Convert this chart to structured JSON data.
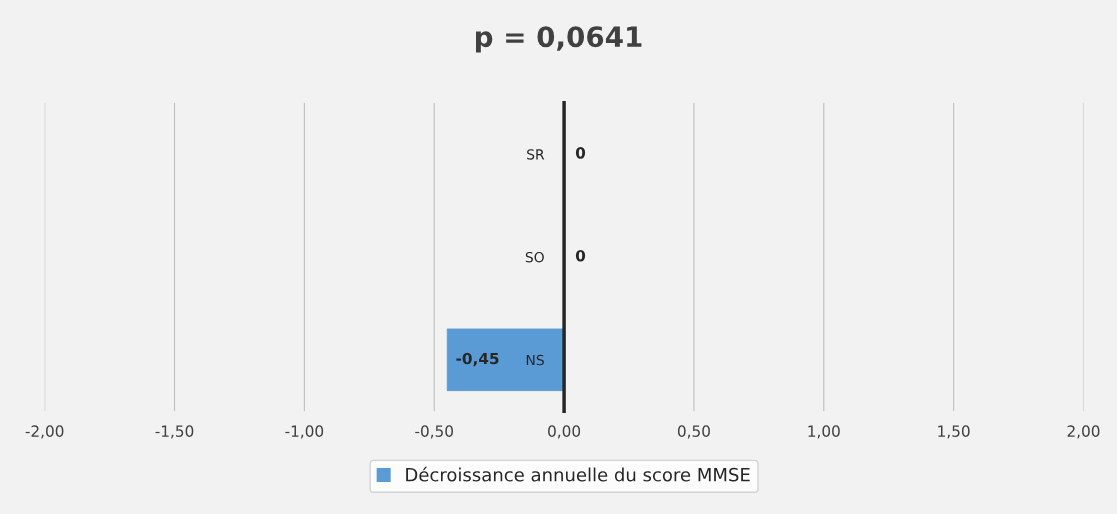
{
  "chart_data": {
    "type": "bar",
    "orientation": "horizontal",
    "title": "p = 0,0641",
    "categories": [
      "SR",
      "SO",
      "NS"
    ],
    "series": [
      {
        "name": "Décroissance annuelle du score MMSE",
        "color": "#5b9bd5",
        "values": [
          0,
          0,
          -0.45
        ],
        "value_labels": [
          "0",
          "0",
          "-0,45"
        ]
      }
    ],
    "xlim": [
      -2,
      2
    ],
    "xticks": [
      {
        "value": -2,
        "label": "-2,00"
      },
      {
        "value": -1.5,
        "label": "-1,50"
      },
      {
        "value": -1,
        "label": "-1,00"
      },
      {
        "value": -0.5,
        "label": "-0,50"
      },
      {
        "value": 0,
        "label": "0,00"
      },
      {
        "value": 0.5,
        "label": "0,50"
      },
      {
        "value": 1,
        "label": "1,00"
      },
      {
        "value": 1.5,
        "label": "1,50"
      },
      {
        "value": 2,
        "label": "2,00"
      }
    ],
    "grid": "x",
    "legend": "bottom"
  }
}
